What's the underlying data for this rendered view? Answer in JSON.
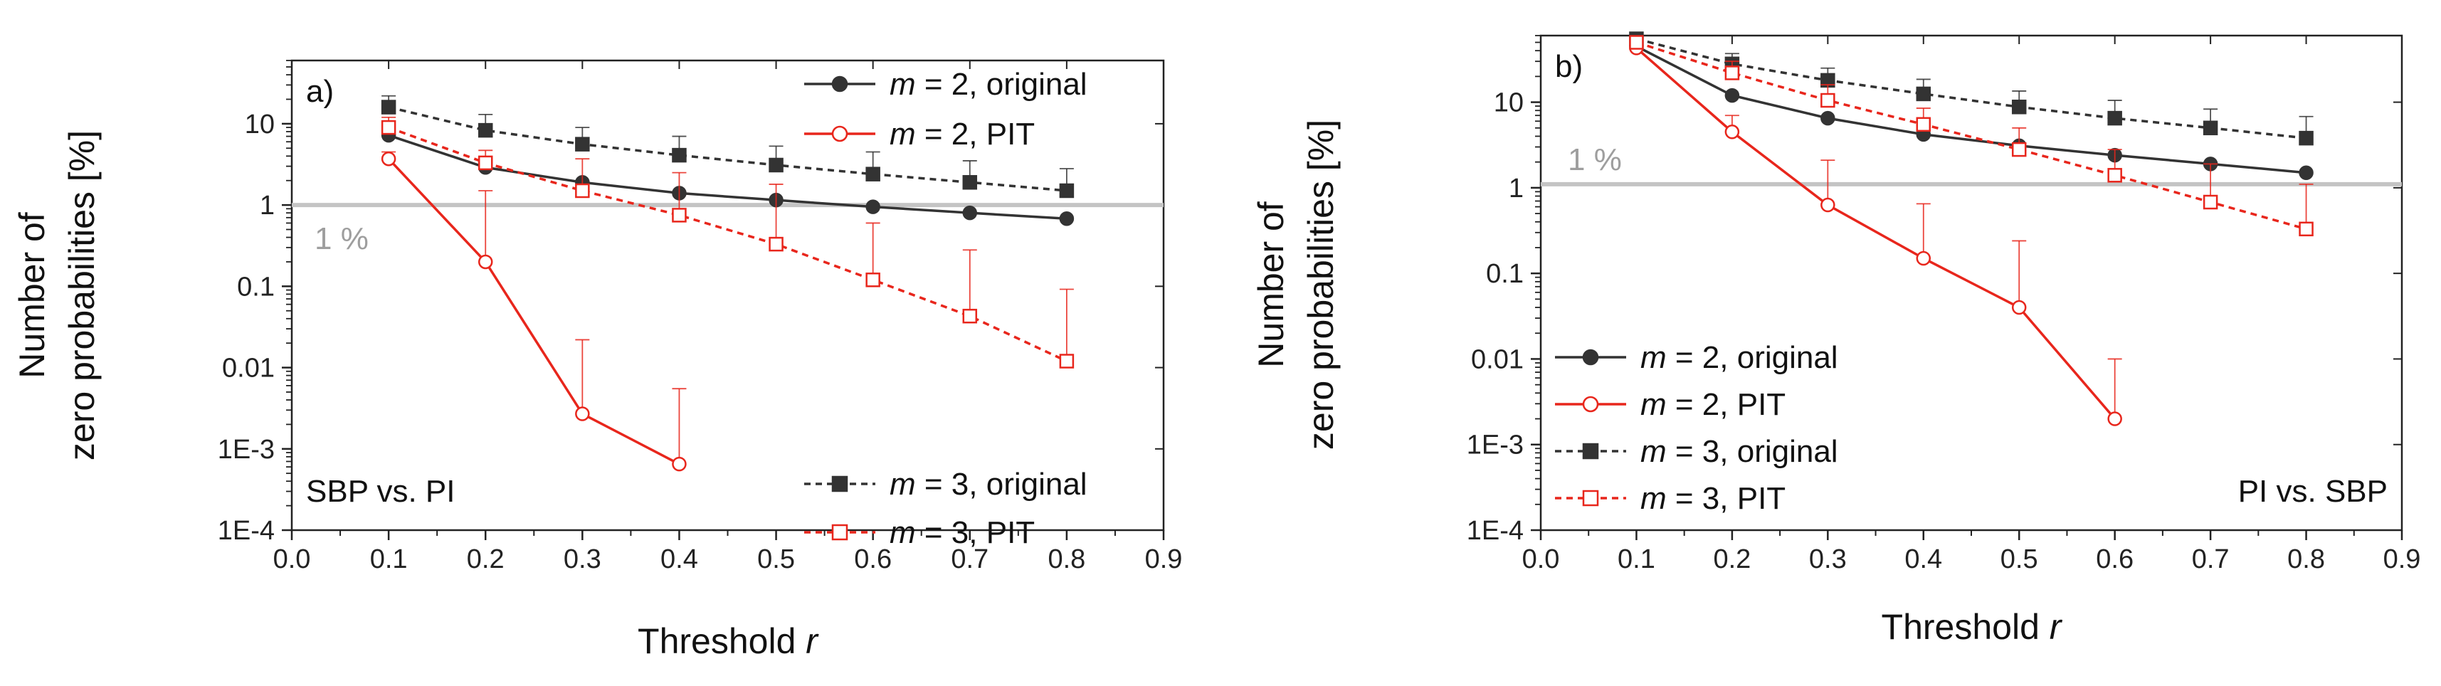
{
  "chart_data": [
    {
      "type": "line",
      "panel_label": "a)",
      "annotation": "SBP vs. PI",
      "xlabel_text": "Threshold ",
      "xlabel_var": "r",
      "ylabel_line1": "Number of",
      "ylabel_line2": "zero probabilities [%]",
      "x_ticks": [
        "0.0",
        "0.1",
        "0.2",
        "0.3",
        "0.4",
        "0.5",
        "0.6",
        "0.7",
        "0.8",
        "0.9"
      ],
      "y_ticks": [
        "1E-4",
        "1E-3",
        "0.01",
        "0.1",
        "1",
        "10"
      ],
      "y_scale": "log",
      "xlim": [
        0,
        0.9
      ],
      "ylim": [
        0.0001,
        60
      ],
      "reference_line": {
        "value": 1,
        "label": "1 %"
      },
      "legend_groups": [
        {
          "position": "top-right",
          "series": [
            0,
            1
          ]
        },
        {
          "position": "bottom-right",
          "series": [
            2,
            3
          ]
        }
      ],
      "series": [
        {
          "var": "m",
          "rest": " = 2, original",
          "color": "#333333",
          "dashed": false,
          "marker": "circle",
          "filled": true,
          "x": [
            0.1,
            0.2,
            0.3,
            0.4,
            0.5,
            0.6,
            0.7,
            0.8
          ],
          "y": [
            7.2,
            2.9,
            1.9,
            1.4,
            1.15,
            0.95,
            0.8,
            0.68
          ],
          "err_upper": []
        },
        {
          "var": "m",
          "rest": " = 2, PIT",
          "color": "#e8261c",
          "dashed": false,
          "marker": "circle",
          "filled": false,
          "x": [
            0.1,
            0.2,
            0.3,
            0.4
          ],
          "y": [
            3.7,
            0.2,
            0.0027,
            0.00065
          ],
          "err_upper": [
            4.5,
            1.5,
            0.022,
            0.0055
          ]
        },
        {
          "var": "m",
          "rest": " = 3, original",
          "color": "#333333",
          "dashed": true,
          "marker": "square",
          "filled": true,
          "x": [
            0.1,
            0.2,
            0.3,
            0.4,
            0.5,
            0.6,
            0.7,
            0.8
          ],
          "y": [
            16,
            8.3,
            5.6,
            4.1,
            3.1,
            2.4,
            1.9,
            1.5
          ],
          "err_upper": [
            22,
            13,
            9,
            7,
            5.3,
            4.5,
            3.5,
            2.8
          ]
        },
        {
          "var": "m",
          "rest": " = 3, PIT",
          "color": "#e8261c",
          "dashed": true,
          "marker": "square",
          "filled": false,
          "x": [
            0.1,
            0.2,
            0.3,
            0.4,
            0.5,
            0.6,
            0.7,
            0.8
          ],
          "y": [
            9,
            3.3,
            1.5,
            0.75,
            0.33,
            0.12,
            0.043,
            0.012
          ],
          "err_upper": [
            12,
            4.7,
            3.7,
            2.5,
            1.8,
            0.6,
            0.28,
            0.092
          ]
        }
      ]
    },
    {
      "type": "line",
      "panel_label": "b)",
      "annotation": "PI vs. SBP",
      "xlabel_text": "Threshold ",
      "xlabel_var": "r",
      "ylabel_line1": "Number of",
      "ylabel_line2": "zero probabilities [%]",
      "x_ticks": [
        "0.0",
        "0.1",
        "0.2",
        "0.3",
        "0.4",
        "0.5",
        "0.6",
        "0.7",
        "0.8",
        "0.9"
      ],
      "y_ticks": [
        "1E-4",
        "1E-3",
        "0.01",
        "0.1",
        "1",
        "10"
      ],
      "y_scale": "log",
      "xlim": [
        0,
        0.9
      ],
      "ylim": [
        0.0001,
        60
      ],
      "reference_line": {
        "value": 1.1,
        "label": "1 %"
      },
      "legend_groups": [
        {
          "position": "bottom-left",
          "series": [
            0,
            1,
            2,
            3
          ]
        }
      ],
      "series": [
        {
          "var": "m",
          "rest": " = 2, original",
          "color": "#333333",
          "dashed": false,
          "marker": "circle",
          "filled": true,
          "x": [
            0.1,
            0.2,
            0.3,
            0.4,
            0.5,
            0.6,
            0.7,
            0.8
          ],
          "y": [
            45,
            12,
            6.5,
            4.2,
            3.1,
            2.4,
            1.9,
            1.5
          ],
          "err_upper": []
        },
        {
          "var": "m",
          "rest": " = 2, PIT",
          "color": "#e8261c",
          "dashed": false,
          "marker": "circle",
          "filled": false,
          "x": [
            0.1,
            0.2,
            0.3,
            0.4,
            0.5,
            0.6
          ],
          "y": [
            43,
            4.5,
            0.63,
            0.15,
            0.04,
            0.002
          ],
          "err_upper": [
            55,
            7,
            2.1,
            0.65,
            0.24,
            0.01
          ]
        },
        {
          "var": "m",
          "rest": " = 3, original",
          "color": "#333333",
          "dashed": true,
          "marker": "square",
          "filled": true,
          "x": [
            0.1,
            0.2,
            0.3,
            0.4,
            0.5,
            0.6,
            0.7,
            0.8
          ],
          "y": [
            55,
            28,
            18,
            12.5,
            8.8,
            6.5,
            5,
            3.8
          ],
          "err_upper": [
            60,
            37,
            25,
            18.5,
            13.5,
            10.5,
            8.3,
            6.8
          ]
        },
        {
          "var": "m",
          "rest": " = 3, PIT",
          "color": "#e8261c",
          "dashed": true,
          "marker": "square",
          "filled": false,
          "x": [
            0.1,
            0.2,
            0.3,
            0.4,
            0.5,
            0.6,
            0.7,
            0.8
          ],
          "y": [
            50,
            22,
            10.5,
            5.5,
            2.8,
            1.4,
            0.68,
            0.33
          ],
          "err_upper": [
            58,
            30,
            16,
            8.5,
            5,
            2.8,
            1.9,
            1.1
          ]
        }
      ]
    }
  ]
}
